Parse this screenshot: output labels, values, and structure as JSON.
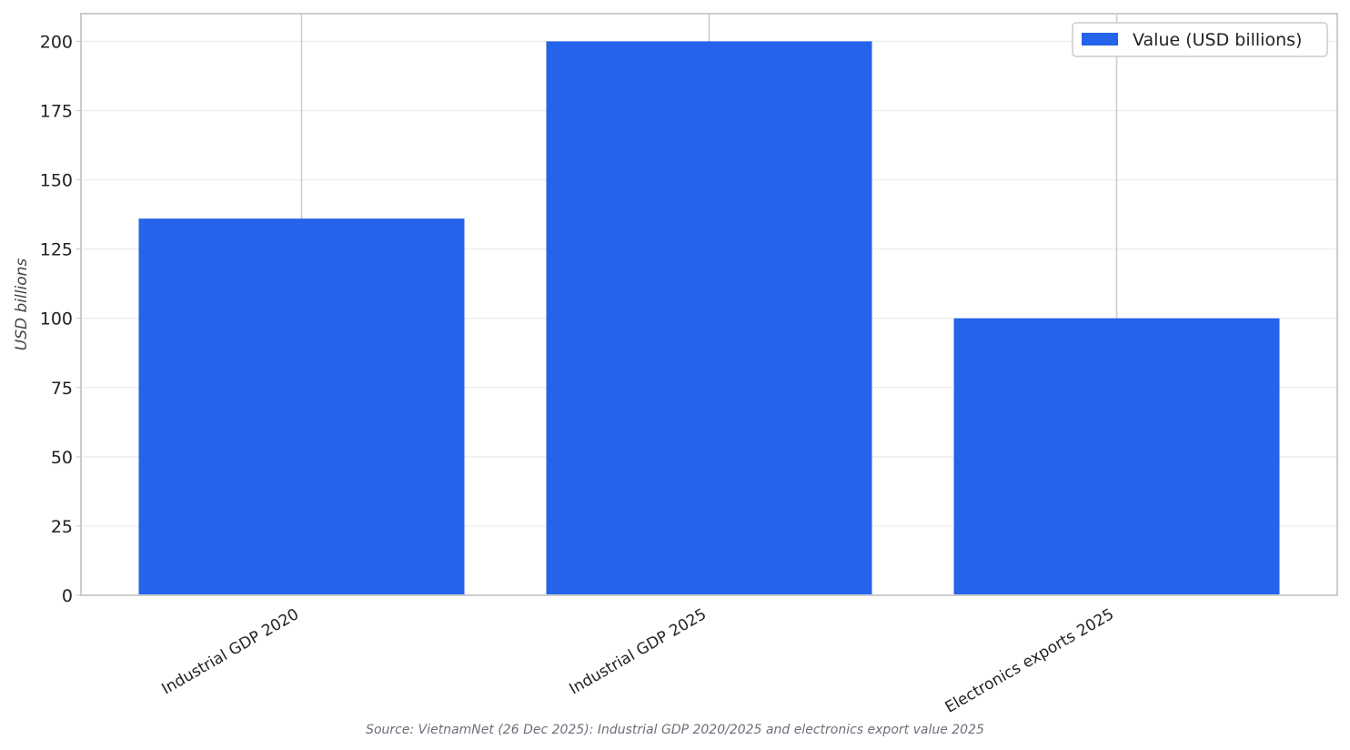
{
  "chart_data": {
    "type": "bar",
    "categories": [
      "Industrial GDP 2020",
      "Industrial GDP 2025",
      "Electronics exports 2025"
    ],
    "series": [
      {
        "name": "Value (USD billions)",
        "values": [
          136,
          200,
          100
        ],
        "color": "#2563eb"
      }
    ],
    "title": "",
    "xlabel": "",
    "ylabel": "USD billions",
    "ylim": [
      0,
      210
    ],
    "yticks": [
      0,
      25,
      50,
      75,
      100,
      125,
      150,
      175,
      200
    ],
    "grid": true,
    "legend_position": "top-right",
    "source_note": "Source: VietnamNet (26 Dec 2025): Industrial GDP 2020/2025 and electronics export value 2025"
  }
}
